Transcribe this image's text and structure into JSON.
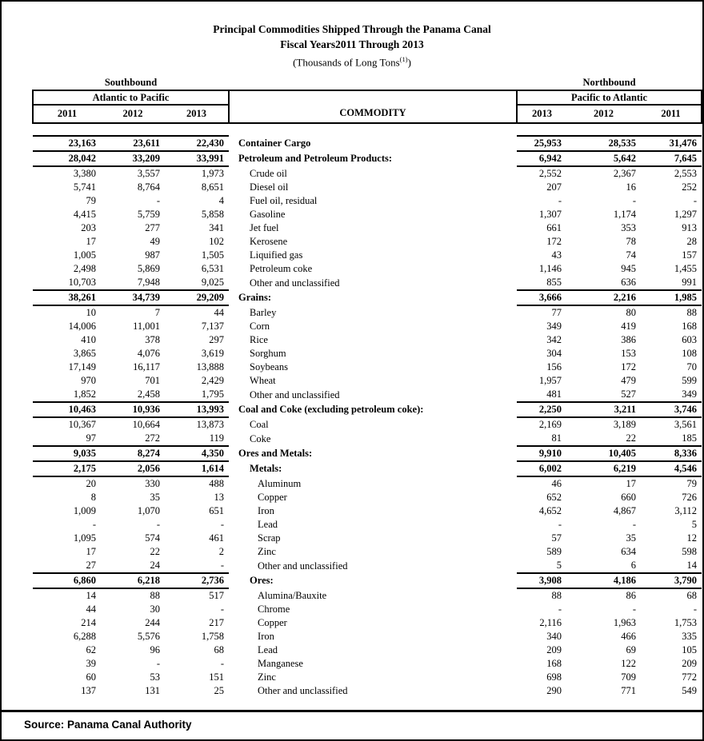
{
  "title": {
    "line1": "Principal Commodities Shipped Through the Panama Canal",
    "line2": "Fiscal Years2011 Through 2013",
    "line3_main": "(Thousands of Long Tons",
    "line3_sup": "(1)",
    "line3_close": ")"
  },
  "header": {
    "southbound": "Southbound",
    "northbound": "Northbound",
    "atlantic_to_pacific": "Atlantic to Pacific",
    "pacific_to_atlantic": "Pacific to Atlantic",
    "commodity": "COMMODITY",
    "sb_years": [
      "2011",
      "2012",
      "2013"
    ],
    "nb_years": [
      "2013",
      "2012",
      "2011"
    ]
  },
  "rows": [
    {
      "label": "Container Cargo",
      "indent": 0,
      "bold": true,
      "sb": [
        "23,163",
        "23,611",
        "22,430"
      ],
      "nb": [
        "25,953",
        "28,535",
        "31,476"
      ]
    },
    {
      "label": "Petroleum and Petroleum Products:",
      "indent": 0,
      "bold": true,
      "sb": [
        "28,042",
        "33,209",
        "33,991"
      ],
      "nb": [
        "6,942",
        "5,642",
        "7,645"
      ]
    },
    {
      "label": "Crude oil",
      "indent": 1,
      "bold": false,
      "sb": [
        "3,380",
        "3,557",
        "1,973"
      ],
      "nb": [
        "2,552",
        "2,367",
        "2,553"
      ]
    },
    {
      "label": "Diesel oil",
      "indent": 1,
      "bold": false,
      "sb": [
        "5,741",
        "8,764",
        "8,651"
      ],
      "nb": [
        "207",
        "16",
        "252"
      ]
    },
    {
      "label": "Fuel oil, residual",
      "indent": 1,
      "bold": false,
      "sb": [
        "79",
        "-",
        "4"
      ],
      "nb": [
        "-",
        "-",
        "-"
      ]
    },
    {
      "label": "Gasoline",
      "indent": 1,
      "bold": false,
      "sb": [
        "4,415",
        "5,759",
        "5,858"
      ],
      "nb": [
        "1,307",
        "1,174",
        "1,297"
      ]
    },
    {
      "label": "Jet fuel",
      "indent": 1,
      "bold": false,
      "sb": [
        "203",
        "277",
        "341"
      ],
      "nb": [
        "661",
        "353",
        "913"
      ]
    },
    {
      "label": "Kerosene",
      "indent": 1,
      "bold": false,
      "sb": [
        "17",
        "49",
        "102"
      ],
      "nb": [
        "172",
        "78",
        "28"
      ]
    },
    {
      "label": "Liquified gas",
      "indent": 1,
      "bold": false,
      "sb": [
        "1,005",
        "987",
        "1,505"
      ],
      "nb": [
        "43",
        "74",
        "157"
      ]
    },
    {
      "label": "Petroleum coke",
      "indent": 1,
      "bold": false,
      "sb": [
        "2,498",
        "5,869",
        "6,531"
      ],
      "nb": [
        "1,146",
        "945",
        "1,455"
      ]
    },
    {
      "label": "Other and unclassified",
      "indent": 1,
      "bold": false,
      "sb": [
        "10,703",
        "7,948",
        "9,025"
      ],
      "nb": [
        "855",
        "636",
        "991"
      ]
    },
    {
      "label": "Grains:",
      "indent": 0,
      "bold": true,
      "sb": [
        "38,261",
        "34,739",
        "29,209"
      ],
      "nb": [
        "3,666",
        "2,216",
        "1,985"
      ]
    },
    {
      "label": "Barley",
      "indent": 1,
      "bold": false,
      "sb": [
        "10",
        "7",
        "44"
      ],
      "nb": [
        "77",
        "80",
        "88"
      ]
    },
    {
      "label": "Corn",
      "indent": 1,
      "bold": false,
      "sb": [
        "14,006",
        "11,001",
        "7,137"
      ],
      "nb": [
        "349",
        "419",
        "168"
      ]
    },
    {
      "label": "Rice",
      "indent": 1,
      "bold": false,
      "sb": [
        "410",
        "378",
        "297"
      ],
      "nb": [
        "342",
        "386",
        "603"
      ]
    },
    {
      "label": "Sorghum",
      "indent": 1,
      "bold": false,
      "sb": [
        "3,865",
        "4,076",
        "3,619"
      ],
      "nb": [
        "304",
        "153",
        "108"
      ]
    },
    {
      "label": "Soybeans",
      "indent": 1,
      "bold": false,
      "sb": [
        "17,149",
        "16,117",
        "13,888"
      ],
      "nb": [
        "156",
        "172",
        "70"
      ]
    },
    {
      "label": "Wheat",
      "indent": 1,
      "bold": false,
      "sb": [
        "970",
        "701",
        "2,429"
      ],
      "nb": [
        "1,957",
        "479",
        "599"
      ]
    },
    {
      "label": "Other and unclassified",
      "indent": 1,
      "bold": false,
      "sb": [
        "1,852",
        "2,458",
        "1,795"
      ],
      "nb": [
        "481",
        "527",
        "349"
      ]
    },
    {
      "label": "Coal and Coke (excluding petroleum coke):",
      "indent": 0,
      "bold": true,
      "sb": [
        "10,463",
        "10,936",
        "13,993"
      ],
      "nb": [
        "2,250",
        "3,211",
        "3,746"
      ]
    },
    {
      "label": "Coal",
      "indent": 1,
      "bold": false,
      "sb": [
        "10,367",
        "10,664",
        "13,873"
      ],
      "nb": [
        "2,169",
        "3,189",
        "3,561"
      ]
    },
    {
      "label": "Coke",
      "indent": 1,
      "bold": false,
      "sb": [
        "97",
        "272",
        "119"
      ],
      "nb": [
        "81",
        "22",
        "185"
      ]
    },
    {
      "label": "Ores and Metals:",
      "indent": 0,
      "bold": true,
      "sb": [
        "9,035",
        "8,274",
        "4,350"
      ],
      "nb": [
        "9,910",
        "10,405",
        "8,336"
      ]
    },
    {
      "label": "Metals:",
      "indent": 1,
      "bold": true,
      "sb": [
        "2,175",
        "2,056",
        "1,614"
      ],
      "nb": [
        "6,002",
        "6,219",
        "4,546"
      ]
    },
    {
      "label": "Aluminum",
      "indent": 2,
      "bold": false,
      "sb": [
        "20",
        "330",
        "488"
      ],
      "nb": [
        "46",
        "17",
        "79"
      ]
    },
    {
      "label": "Copper",
      "indent": 2,
      "bold": false,
      "sb": [
        "8",
        "35",
        "13"
      ],
      "nb": [
        "652",
        "660",
        "726"
      ]
    },
    {
      "label": "Iron",
      "indent": 2,
      "bold": false,
      "sb": [
        "1,009",
        "1,070",
        "651"
      ],
      "nb": [
        "4,652",
        "4,867",
        "3,112"
      ]
    },
    {
      "label": "Lead",
      "indent": 2,
      "bold": false,
      "sb": [
        "-",
        "-",
        "-"
      ],
      "nb": [
        "-",
        "-",
        "5"
      ]
    },
    {
      "label": "Scrap",
      "indent": 2,
      "bold": false,
      "sb": [
        "1,095",
        "574",
        "461"
      ],
      "nb": [
        "57",
        "35",
        "12"
      ]
    },
    {
      "label": "Zinc",
      "indent": 2,
      "bold": false,
      "sb": [
        "17",
        "22",
        "2"
      ],
      "nb": [
        "589",
        "634",
        "598"
      ]
    },
    {
      "label": "Other and unclassified",
      "indent": 2,
      "bold": false,
      "sb": [
        "27",
        "24",
        "-"
      ],
      "nb": [
        "5",
        "6",
        "14"
      ]
    },
    {
      "label": "Ores:",
      "indent": 1,
      "bold": true,
      "sb": [
        "6,860",
        "6,218",
        "2,736"
      ],
      "nb": [
        "3,908",
        "4,186",
        "3,790"
      ]
    },
    {
      "label": "Alumina/Bauxite",
      "indent": 2,
      "bold": false,
      "sb": [
        "14",
        "88",
        "517"
      ],
      "nb": [
        "88",
        "86",
        "68"
      ]
    },
    {
      "label": "Chrome",
      "indent": 2,
      "bold": false,
      "sb": [
        "44",
        "30",
        "-"
      ],
      "nb": [
        "-",
        "-",
        "-"
      ]
    },
    {
      "label": "Copper",
      "indent": 2,
      "bold": false,
      "sb": [
        "214",
        "244",
        "217"
      ],
      "nb": [
        "2,116",
        "1,963",
        "1,753"
      ]
    },
    {
      "label": "Iron",
      "indent": 2,
      "bold": false,
      "sb": [
        "6,288",
        "5,576",
        "1,758"
      ],
      "nb": [
        "340",
        "466",
        "335"
      ]
    },
    {
      "label": "Lead",
      "indent": 2,
      "bold": false,
      "sb": [
        "62",
        "96",
        "68"
      ],
      "nb": [
        "209",
        "69",
        "105"
      ]
    },
    {
      "label": "Manganese",
      "indent": 2,
      "bold": false,
      "sb": [
        "39",
        "-",
        "-"
      ],
      "nb": [
        "168",
        "122",
        "209"
      ]
    },
    {
      "label": "Zinc",
      "indent": 2,
      "bold": false,
      "sb": [
        "60",
        "53",
        "151"
      ],
      "nb": [
        "698",
        "709",
        "772"
      ]
    },
    {
      "label": "Other and unclassified",
      "indent": 2,
      "bold": false,
      "sb": [
        "137",
        "131",
        "25"
      ],
      "nb": [
        "290",
        "771",
        "549"
      ]
    }
  ],
  "footer": {
    "source": "Source: Panama Canal Authority"
  }
}
